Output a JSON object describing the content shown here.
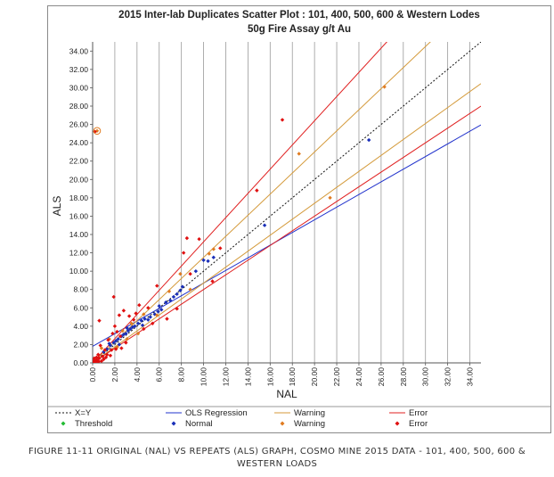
{
  "chart_data": {
    "type": "scatter",
    "title": "2015 Inter-lab Duplicates Scatter Plot : 101, 400, 500, 600 & Western Lodes",
    "subtitle": "50g Fire Assay g/t Au",
    "xlabel": "NAL",
    "ylabel": "ALS",
    "xlim": [
      0,
      35
    ],
    "ylim": [
      0,
      35
    ],
    "x_ticks": [
      "0.00",
      "2.00",
      "4.00",
      "6.00",
      "8.00",
      "10.00",
      "12.00",
      "14.00",
      "16.00",
      "18.00",
      "20.00",
      "22.00",
      "24.00",
      "26.00",
      "28.00",
      "30.00",
      "32.00",
      "34.00"
    ],
    "y_ticks": [
      "0.00",
      "2.00",
      "4.00",
      "6.00",
      "8.00",
      "10.00",
      "12.00",
      "14.00",
      "16.00",
      "18.00",
      "20.00",
      "22.00",
      "24.00",
      "26.00",
      "28.00",
      "30.00",
      "32.00",
      "34.00"
    ],
    "grid": "vertical",
    "lines": [
      {
        "name": "X=Y",
        "color": "#111111",
        "dash": "dotted",
        "slope": 1.0,
        "intercept": 0
      },
      {
        "name": "OLS Regression",
        "color": "#2233cc",
        "dash": "solid",
        "slope": 0.69,
        "intercept": 1.8
      },
      {
        "name": "Warning",
        "color": "#d49a3a",
        "dash": "solid",
        "slope": 1.15,
        "intercept": 0
      },
      {
        "name": "Warning",
        "color": "#d49a3a",
        "dash": "solid",
        "slope": 0.87,
        "intercept": 0
      },
      {
        "name": "Error",
        "color": "#e02020",
        "dash": "solid",
        "slope": 1.32,
        "intercept": 0
      },
      {
        "name": "Error",
        "color": "#e02020",
        "dash": "solid",
        "slope": 0.8,
        "intercept": 0
      }
    ],
    "series": [
      {
        "name": "Normal",
        "color": "#1a2fb8",
        "points": [
          [
            1.0,
            1.2
          ],
          [
            1.3,
            1.5
          ],
          [
            1.6,
            1.9
          ],
          [
            1.9,
            2.2
          ],
          [
            2.1,
            2.4
          ],
          [
            2.3,
            2.6
          ],
          [
            2.6,
            2.9
          ],
          [
            2.8,
            3.1
          ],
          [
            3.0,
            3.2
          ],
          [
            3.2,
            3.5
          ],
          [
            3.4,
            3.7
          ],
          [
            3.6,
            3.9
          ],
          [
            3.8,
            4.0
          ],
          [
            4.1,
            4.3
          ],
          [
            4.4,
            4.6
          ],
          [
            4.7,
            4.8
          ],
          [
            5.0,
            4.7
          ],
          [
            5.2,
            5.0
          ],
          [
            5.6,
            5.3
          ],
          [
            5.9,
            5.6
          ],
          [
            6.2,
            5.8
          ],
          [
            6.6,
            6.6
          ],
          [
            7.0,
            6.8
          ],
          [
            7.3,
            7.2
          ],
          [
            7.6,
            7.5
          ],
          [
            7.9,
            7.9
          ],
          [
            8.1,
            8.3
          ],
          [
            9.3,
            10.0
          ],
          [
            10.0,
            11.2
          ],
          [
            10.4,
            11.1
          ],
          [
            10.9,
            11.5
          ],
          [
            15.5,
            15.0
          ],
          [
            24.9,
            24.3
          ],
          [
            1.5,
            2.1
          ],
          [
            2.4,
            2.0
          ],
          [
            3.1,
            3.8
          ],
          [
            4.5,
            4.1
          ],
          [
            6.0,
            6.2
          ]
        ]
      },
      {
        "name": "Warning",
        "color": "#e07b20",
        "points": [
          [
            0.8,
            1.6
          ],
          [
            1.5,
            2.6
          ],
          [
            2.2,
            1.7
          ],
          [
            2.7,
            3.5
          ],
          [
            3.1,
            2.6
          ],
          [
            3.5,
            4.3
          ],
          [
            4.1,
            3.2
          ],
          [
            4.6,
            5.3
          ],
          [
            5.8,
            5.2
          ],
          [
            6.9,
            7.8
          ],
          [
            7.9,
            9.7
          ],
          [
            8.8,
            8.0
          ],
          [
            10.5,
            11.9
          ],
          [
            10.9,
            12.4
          ],
          [
            18.6,
            22.8
          ],
          [
            21.4,
            18.0
          ],
          [
            26.3,
            30.1
          ],
          [
            0.4,
            25.3
          ]
        ]
      },
      {
        "name": "Error",
        "color": "#e01010",
        "points": [
          [
            0.05,
            0.2
          ],
          [
            0.1,
            0.1
          ],
          [
            0.15,
            0.5
          ],
          [
            0.2,
            0.25
          ],
          [
            0.3,
            0.05
          ],
          [
            0.35,
            0.6
          ],
          [
            0.4,
            0.3
          ],
          [
            0.5,
            0.9
          ],
          [
            0.55,
            0.15
          ],
          [
            0.6,
            0.5
          ],
          [
            0.7,
            1.9
          ],
          [
            0.8,
            0.2
          ],
          [
            0.9,
            0.7
          ],
          [
            1.0,
            0.4
          ],
          [
            1.1,
            1.4
          ],
          [
            1.2,
            0.6
          ],
          [
            1.3,
            0.9
          ],
          [
            1.4,
            2.5
          ],
          [
            1.6,
            0.8
          ],
          [
            1.7,
            1.4
          ],
          [
            1.8,
            3.2
          ],
          [
            1.9,
            7.2
          ],
          [
            2.0,
            4.0
          ],
          [
            2.1,
            1.5
          ],
          [
            2.2,
            3.4
          ],
          [
            2.4,
            5.2
          ],
          [
            2.5,
            2.9
          ],
          [
            2.6,
            1.6
          ],
          [
            2.8,
            5.7
          ],
          [
            3.0,
            2.2
          ],
          [
            3.3,
            5.1
          ],
          [
            3.7,
            4.7
          ],
          [
            3.9,
            5.4
          ],
          [
            4.2,
            6.3
          ],
          [
            4.6,
            3.7
          ],
          [
            5.0,
            6.0
          ],
          [
            5.4,
            4.3
          ],
          [
            5.8,
            8.4
          ],
          [
            6.7,
            4.8
          ],
          [
            7.6,
            5.9
          ],
          [
            8.2,
            12.0
          ],
          [
            8.5,
            13.6
          ],
          [
            8.8,
            9.7
          ],
          [
            9.6,
            13.5
          ],
          [
            10.8,
            8.9
          ],
          [
            11.5,
            12.5
          ],
          [
            14.8,
            18.8
          ],
          [
            17.1,
            26.5
          ],
          [
            0.2,
            25.2
          ],
          [
            0.6,
            4.6
          ]
        ]
      },
      {
        "name": "Threshold",
        "color": "#22bb33",
        "points": []
      }
    ],
    "legend": {
      "position": "bottom",
      "entries": [
        {
          "label": "X=Y",
          "kind": "line",
          "color": "#111111",
          "dash": "dotted"
        },
        {
          "label": "OLS Regression",
          "kind": "line",
          "color": "#2233cc",
          "dash": "solid"
        },
        {
          "label": "Warning",
          "kind": "line",
          "color": "#d49a3a",
          "dash": "solid"
        },
        {
          "label": "Error",
          "kind": "line",
          "color": "#e02020",
          "dash": "solid"
        },
        {
          "label": "Threshold",
          "kind": "marker",
          "color": "#22bb33"
        },
        {
          "label": "Normal",
          "kind": "marker",
          "color": "#1a2fb8"
        },
        {
          "label": "Warning",
          "kind": "marker",
          "color": "#e07b20"
        },
        {
          "label": "Error",
          "kind": "marker",
          "color": "#e01010"
        }
      ]
    }
  },
  "caption": {
    "line1": "FIGURE 11-11 ORIGINAL (NAL) VS REPEATS (ALS) GRAPH, COSMO MINE 2015 DATA - 101, 400, 500, 600 &",
    "line2": "WESTERN LOADS"
  }
}
